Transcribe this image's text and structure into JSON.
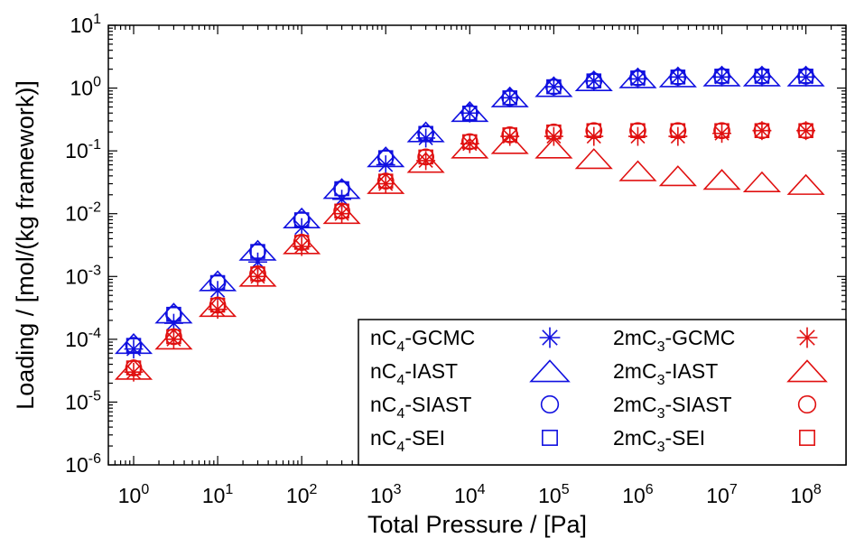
{
  "chart_data": {
    "type": "scatter",
    "xlabel": "Total Pressure / [Pa]",
    "ylabel": "Loading / [mol/(kg framework)]",
    "x_scale": "log",
    "y_scale": "log",
    "xlim": [
      0.5,
      300000000
    ],
    "ylim": [
      1e-06,
      10
    ],
    "x_ticks": [
      {
        "base": "10",
        "exp": "0",
        "value": 1
      },
      {
        "base": "10",
        "exp": "1",
        "value": 10
      },
      {
        "base": "10",
        "exp": "2",
        "value": 100
      },
      {
        "base": "10",
        "exp": "3",
        "value": 1000
      },
      {
        "base": "10",
        "exp": "4",
        "value": 10000
      },
      {
        "base": "10",
        "exp": "5",
        "value": 100000
      },
      {
        "base": "10",
        "exp": "6",
        "value": 1000000
      },
      {
        "base": "10",
        "exp": "7",
        "value": 10000000
      },
      {
        "base": "10",
        "exp": "8",
        "value": 100000000
      }
    ],
    "y_ticks": [
      {
        "base": "10",
        "exp": "-6",
        "value": 1e-06
      },
      {
        "base": "10",
        "exp": "-5",
        "value": 1e-05
      },
      {
        "base": "10",
        "exp": "-4",
        "value": 0.0001
      },
      {
        "base": "10",
        "exp": "-3",
        "value": 0.001
      },
      {
        "base": "10",
        "exp": "-2",
        "value": 0.01
      },
      {
        "base": "10",
        "exp": "-1",
        "value": 0.1
      },
      {
        "base": "10",
        "exp": "0",
        "value": 1
      },
      {
        "base": "10",
        "exp": "1",
        "value": 10
      }
    ],
    "grid": false,
    "legend_position": "bottom-right",
    "x": [
      1,
      3,
      10,
      30,
      100,
      300,
      1000,
      3000,
      10000,
      30000,
      100000,
      300000,
      1000000,
      3000000,
      10000000,
      30000000,
      100000000
    ],
    "series": [
      {
        "name": "nC4-GCMC",
        "label_pre": "nC",
        "label_sub": "4",
        "label_post": "-GCMC",
        "marker": "star",
        "color": "#1010e0",
        "values": [
          7e-05,
          0.00018,
          0.0006,
          0.0017,
          0.006,
          0.017,
          0.06,
          0.16,
          0.4,
          0.7,
          1.05,
          1.3,
          1.4,
          1.5,
          1.5,
          1.5,
          1.5
        ]
      },
      {
        "name": "nC4-IAST",
        "label_pre": "nC",
        "label_sub": "4",
        "label_post": "-IAST",
        "marker": "triangle",
        "color": "#1010e0",
        "values": [
          8.5e-05,
          0.00026,
          0.00085,
          0.0026,
          0.0085,
          0.025,
          0.08,
          0.2,
          0.42,
          0.72,
          1.05,
          1.3,
          1.45,
          1.5,
          1.55,
          1.55,
          1.55
        ]
      },
      {
        "name": "nC4-SIAST",
        "label_pre": "nC",
        "label_sub": "4",
        "label_post": "-SIAST",
        "marker": "circle",
        "color": "#1010e0",
        "values": [
          8e-05,
          0.00025,
          0.0008,
          0.0025,
          0.008,
          0.025,
          0.078,
          0.19,
          0.4,
          0.7,
          1.05,
          1.3,
          1.45,
          1.5,
          1.55,
          1.55,
          1.55
        ]
      },
      {
        "name": "nC4-SEI",
        "label_pre": "nC",
        "label_sub": "4",
        "label_post": "-SEI",
        "marker": "square",
        "color": "#1010e0",
        "values": [
          8e-05,
          0.00025,
          0.0008,
          0.0025,
          0.008,
          0.025,
          0.078,
          0.19,
          0.4,
          0.7,
          1.05,
          1.3,
          1.45,
          1.5,
          1.55,
          1.55,
          1.55
        ]
      },
      {
        "name": "2mC3-GCMC",
        "label_pre": "2mC",
        "label_sub": "3",
        "label_post": "-GCMC",
        "marker": "star",
        "color": "#e01010",
        "values": [
          3e-05,
          0.0001,
          0.0003,
          0.001,
          0.003,
          0.01,
          0.03,
          0.07,
          0.13,
          0.17,
          0.17,
          0.17,
          0.17,
          0.17,
          0.19,
          0.21,
          0.21
        ]
      },
      {
        "name": "2mC3-IAST",
        "label_pre": "2mC",
        "label_sub": "3",
        "label_post": "-IAST",
        "marker": "triangle",
        "color": "#e01010",
        "values": [
          3.3e-05,
          0.0001,
          0.00033,
          0.001,
          0.0033,
          0.01,
          0.03,
          0.065,
          0.11,
          0.13,
          0.11,
          0.075,
          0.048,
          0.04,
          0.035,
          0.032,
          0.029
        ]
      },
      {
        "name": "2mC3-SIAST",
        "label_pre": "2mC",
        "label_sub": "3",
        "label_post": "-SIAST",
        "marker": "circle",
        "color": "#e01010",
        "values": [
          3.5e-05,
          0.00011,
          0.00035,
          0.0011,
          0.0035,
          0.011,
          0.033,
          0.08,
          0.14,
          0.18,
          0.2,
          0.21,
          0.21,
          0.21,
          0.21,
          0.21,
          0.21
        ]
      },
      {
        "name": "2mC3-SEI",
        "label_pre": "2mC",
        "label_sub": "3",
        "label_post": "-SEI",
        "marker": "square",
        "color": "#e01010",
        "values": [
          3.5e-05,
          0.00011,
          0.00035,
          0.0011,
          0.0035,
          0.011,
          0.033,
          0.08,
          0.14,
          0.18,
          0.2,
          0.21,
          0.21,
          0.21,
          0.21,
          0.21,
          0.21
        ]
      }
    ]
  }
}
